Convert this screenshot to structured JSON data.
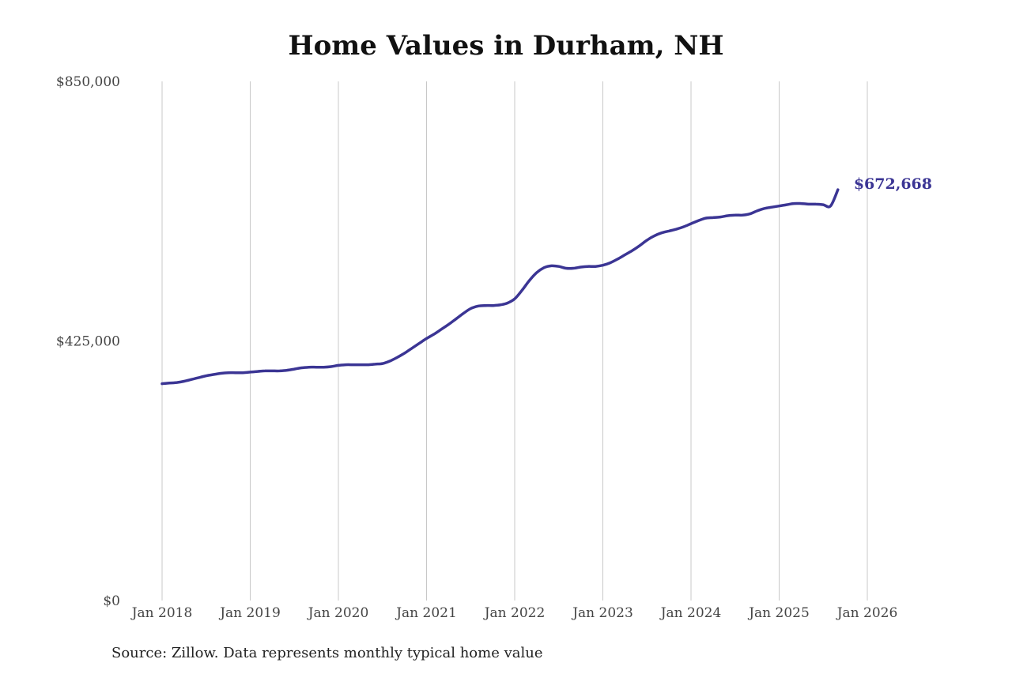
{
  "chart_data": {
    "type": "line",
    "title": "Home Values in Durham, NH",
    "xlabel": "",
    "ylabel": "",
    "x_start": "2018-01",
    "x_ticks": [
      "Jan 2018",
      "Jan 2019",
      "Jan 2020",
      "Jan 2021",
      "Jan 2022",
      "Jan 2023",
      "Jan 2024",
      "Jan 2025",
      "Jan 2026"
    ],
    "y_ticks": [
      "$0",
      "$425,000",
      "$850,000"
    ],
    "ylim": [
      0,
      850000
    ],
    "grid": "vertical",
    "line_color": "#3b3594",
    "series": [
      {
        "values": [
          355000,
          356000,
          357000,
          359000,
          362000,
          365000,
          368000,
          370000,
          372000,
          373000,
          373000,
          373000,
          374000,
          375000,
          376000,
          376000,
          376000,
          377000,
          379000,
          381000,
          382000,
          382000,
          382000,
          383000,
          385000,
          386000,
          386000,
          386000,
          386000,
          387000,
          388000,
          392000,
          398000,
          405000,
          413000,
          421000,
          429000,
          436000,
          444000,
          452000,
          461000,
          470000,
          478000,
          482000,
          483000,
          483000,
          484000,
          487000,
          494000,
          508000,
          524000,
          537000,
          545000,
          548000,
          547000,
          544000,
          544000,
          546000,
          547000,
          547000,
          549000,
          553000,
          559000,
          566000,
          573000,
          581000,
          590000,
          597000,
          602000,
          605000,
          608000,
          612000,
          617000,
          622000,
          626000,
          627000,
          628000,
          630000,
          631000,
          631000,
          633000,
          638000,
          642000,
          644000,
          646000,
          648000,
          650000,
          650000,
          649000,
          649000,
          648000,
          646000,
          672668
        ],
        "end_label": "$672,668"
      }
    ]
  },
  "footer": {
    "source": "Source: Zillow. Data represents monthly typical home value"
  }
}
